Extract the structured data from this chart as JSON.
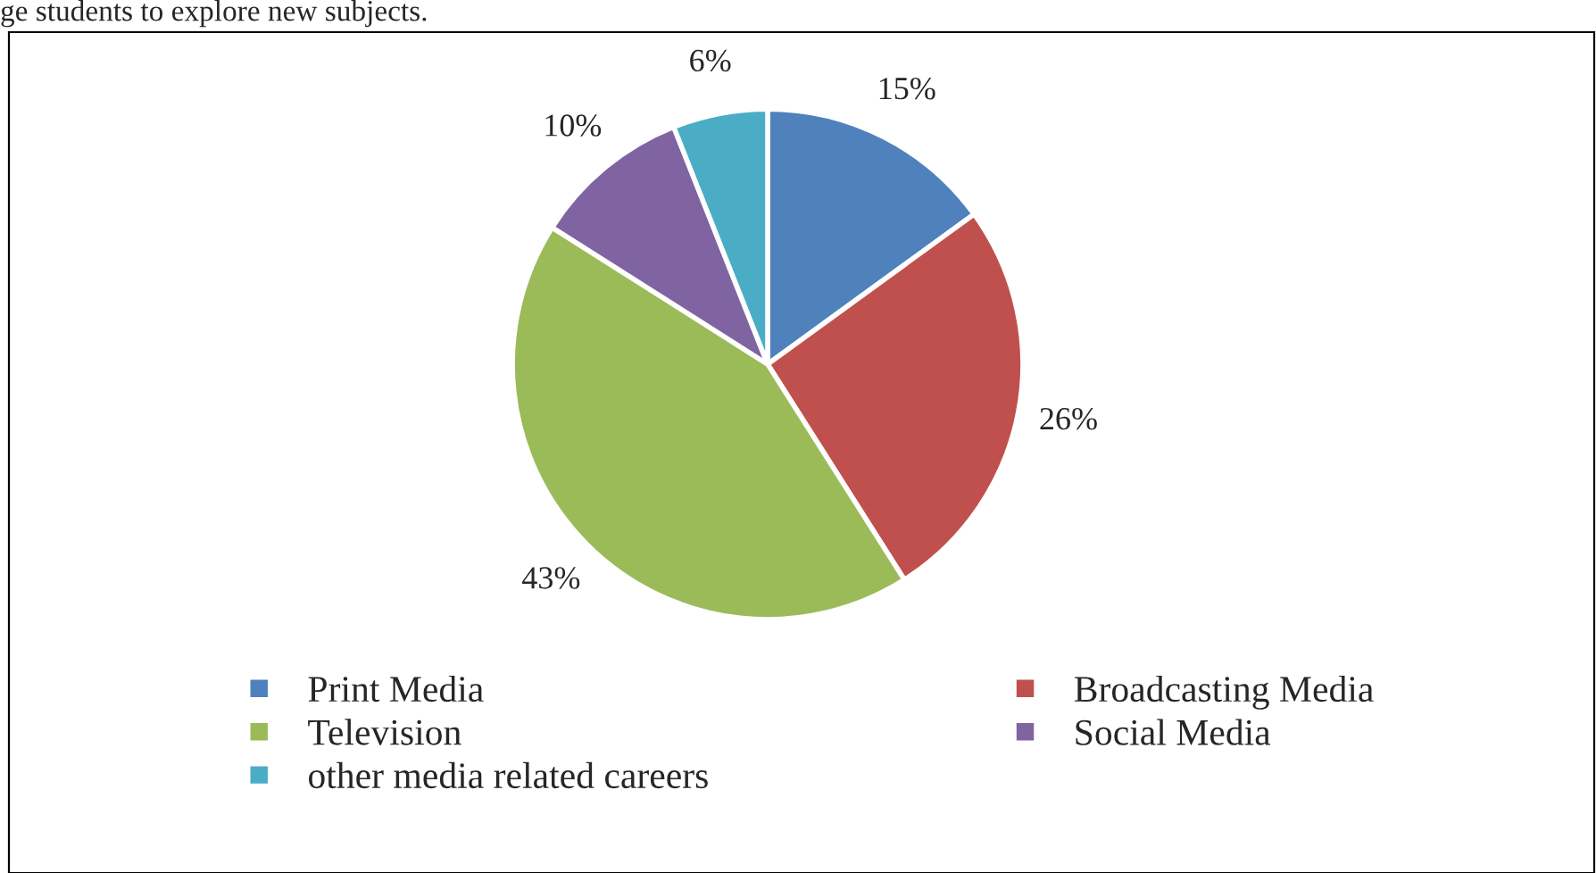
{
  "chart_data": {
    "type": "pie",
    "categories": [
      "Print Media",
      "Broadcasting Media",
      "Television",
      "Social Media",
      "other media related careers"
    ],
    "values": [
      15,
      26,
      43,
      10,
      6
    ],
    "colors": [
      "#4f81bd",
      "#c0504d",
      "#9bbb59",
      "#8064a2",
      "#4bacc6"
    ],
    "value_labels": [
      "15%",
      "26%",
      "43%",
      "10%",
      "6%"
    ],
    "legend": "bottom",
    "annotations": [
      "ge students to explore new subjects."
    ]
  }
}
